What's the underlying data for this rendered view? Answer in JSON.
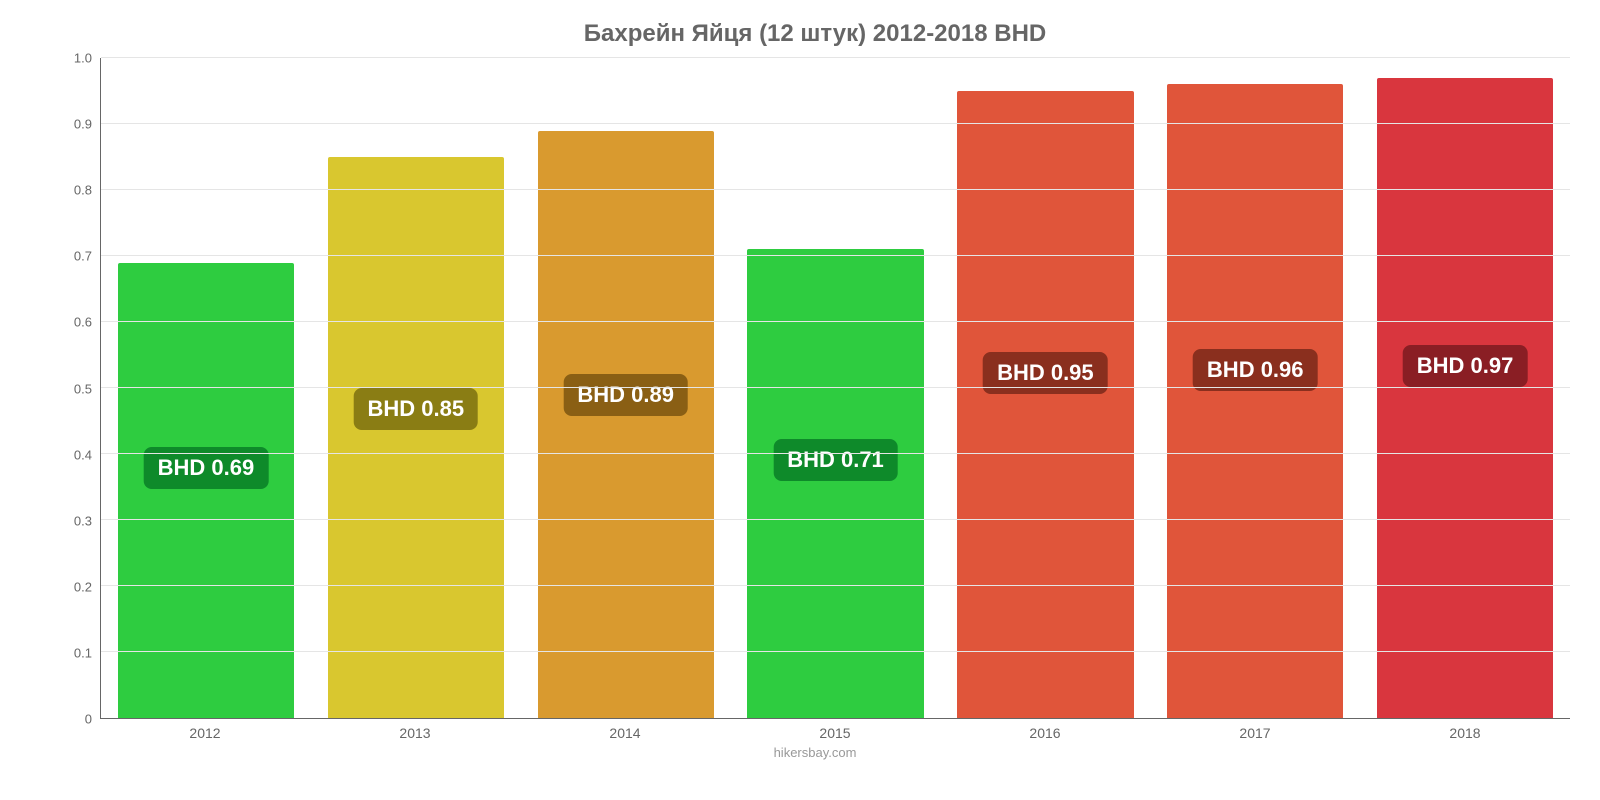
{
  "chart": {
    "type": "bar",
    "title": "Бахрейн Яйця (12 штук) 2012-2018 BHD",
    "title_fontsize": 24,
    "title_color": "#666666",
    "attribution": "hikersbay.com",
    "attribution_color": "#999999",
    "background_color": "#ffffff",
    "grid_color": "#e5e5e5",
    "axis_color": "#666666",
    "tick_fontsize": 13,
    "tick_color": "#666666",
    "ylim": [
      0,
      1.0
    ],
    "yticks": [
      0,
      0.1,
      0.2,
      0.3,
      0.4,
      0.5,
      0.6,
      0.7,
      0.8,
      0.9,
      1.0
    ],
    "ytick_labels": [
      "0",
      "0.1",
      "0.2",
      "0.3",
      "0.4",
      "0.5",
      "0.6",
      "0.7",
      "0.8",
      "0.9",
      "1.0"
    ],
    "categories": [
      "2012",
      "2013",
      "2014",
      "2015",
      "2016",
      "2017",
      "2018"
    ],
    "values": [
      0.69,
      0.85,
      0.89,
      0.71,
      0.95,
      0.96,
      0.97
    ],
    "value_labels": [
      "BHD 0.69",
      "BHD 0.85",
      "BHD 0.89",
      "BHD 0.71",
      "BHD 0.95",
      "BHD 0.96",
      "BHD 0.97"
    ],
    "bar_colors": [
      "#2ecc40",
      "#d9c72f",
      "#d99a2f",
      "#2ecc40",
      "#e0553a",
      "#e0553a",
      "#d9363e"
    ],
    "badge_colors": [
      "#0e8a2a",
      "#8a7d14",
      "#8a5f14",
      "#0e8a2a",
      "#8a2f1e",
      "#8a2f1e",
      "#8a1e24"
    ],
    "value_badge_fontsize": 22,
    "value_badge_text_color": "#ffffff",
    "bar_width_ratio": 0.84,
    "label_relative_position": 0.55
  }
}
